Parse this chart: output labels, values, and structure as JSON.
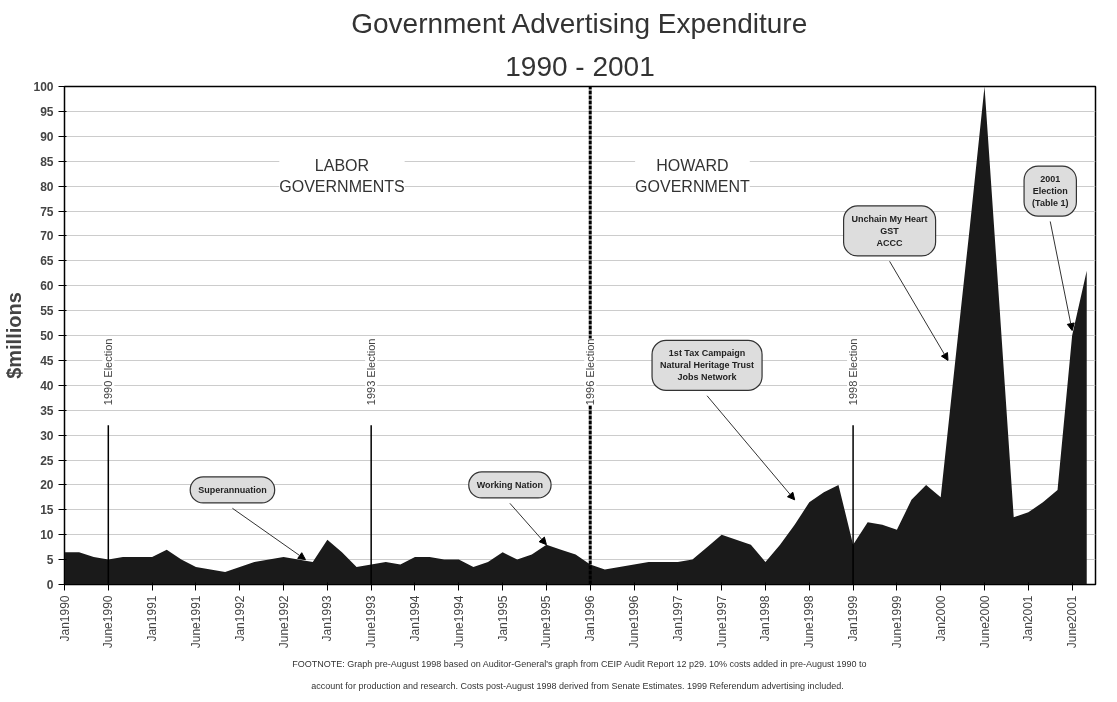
{
  "chart_data": {
    "type": "area",
    "title": "Government Advertising Expenditure",
    "subtitle": "1990 - 2001",
    "ylabel": "$millions",
    "categories": [
      "Jan1990",
      null,
      null,
      "June1990",
      null,
      null,
      "Jan1991",
      null,
      null,
      "June1991",
      null,
      null,
      "Jan1992",
      null,
      null,
      "June1992",
      null,
      null,
      "Jan1993",
      null,
      null,
      "June1993",
      null,
      null,
      "Jan1994",
      null,
      null,
      "June1994",
      null,
      null,
      "Jan1995",
      null,
      null,
      "June1995",
      null,
      null,
      "Jan1996",
      null,
      null,
      "June1996",
      null,
      null,
      "Jan1997",
      null,
      null,
      "June1997",
      null,
      null,
      "Jan1998",
      null,
      null,
      "June1998",
      null,
      null,
      "Jan1999",
      null,
      null,
      "June1999",
      null,
      null,
      "Jan2000",
      null,
      null,
      "June2000",
      null,
      null,
      "Jan2001",
      null,
      null,
      "June2001",
      null
    ],
    "series": [
      {
        "color": "#1a1a1a",
        "values": [
          6.5,
          6.5,
          5.5,
          5,
          5.5,
          5.5,
          5.5,
          7,
          5,
          3.5,
          3,
          2.5,
          3.5,
          4.5,
          5,
          5.5,
          5,
          4.5,
          9,
          6.5,
          3.5,
          4,
          4.5,
          4,
          5.5,
          5.5,
          5,
          5,
          3.5,
          4.5,
          6.5,
          5,
          6,
          8,
          7,
          6,
          4,
          3,
          3.5,
          4,
          4.5,
          4.5,
          4.5,
          5,
          7.5,
          10,
          9,
          8,
          4.5,
          8,
          12,
          16.5,
          18.5,
          20,
          8,
          12.5,
          12,
          11,
          17,
          20,
          17.5,
          45,
          72,
          100,
          57,
          13.5,
          14.5,
          16.5,
          19,
          50,
          63
        ]
      }
    ],
    "ylim": [
      0,
      100
    ],
    "yticks": [
      0,
      5,
      10,
      15,
      20,
      25,
      30,
      35,
      40,
      45,
      50,
      55,
      60,
      65,
      70,
      75,
      80,
      85,
      90,
      95,
      100
    ],
    "grid": "y",
    "ref_lines": [
      {
        "axis": "x",
        "value": "June1990",
        "label": "1990 Election",
        "line_style": "solid"
      },
      {
        "axis": "x",
        "value": "June1993",
        "label": "1993 Election",
        "line_style": "solid"
      },
      {
        "axis": "x",
        "value": "Jan1996",
        "label": "1996 Election",
        "line_style": "dashed"
      },
      {
        "axis": "x",
        "value": "Jan1999",
        "label": "1998 Election",
        "line_style": "solid"
      }
    ],
    "annotations": [
      "LABOR\nGOVERNMENTS",
      "HOWARD\nGOVERNMENT",
      "Superannuation",
      "Working Nation",
      "1st Tax Campaign\nNatural Heritage Trust\nJobs Network",
      "Unchain My Heart\nGST\nACCC",
      "2001\nElection\n(Table 1)",
      "FOOTNOTE: Graph pre-August 1998 based on Auditor-General's graph from CEIP Audit Report 12 p29. 10% costs added in pre-August 1990 to\naccount for production and research.   Costs post-August 1998 derived from Senate Estimates. 1999 Referendum advertising included."
    ]
  }
}
